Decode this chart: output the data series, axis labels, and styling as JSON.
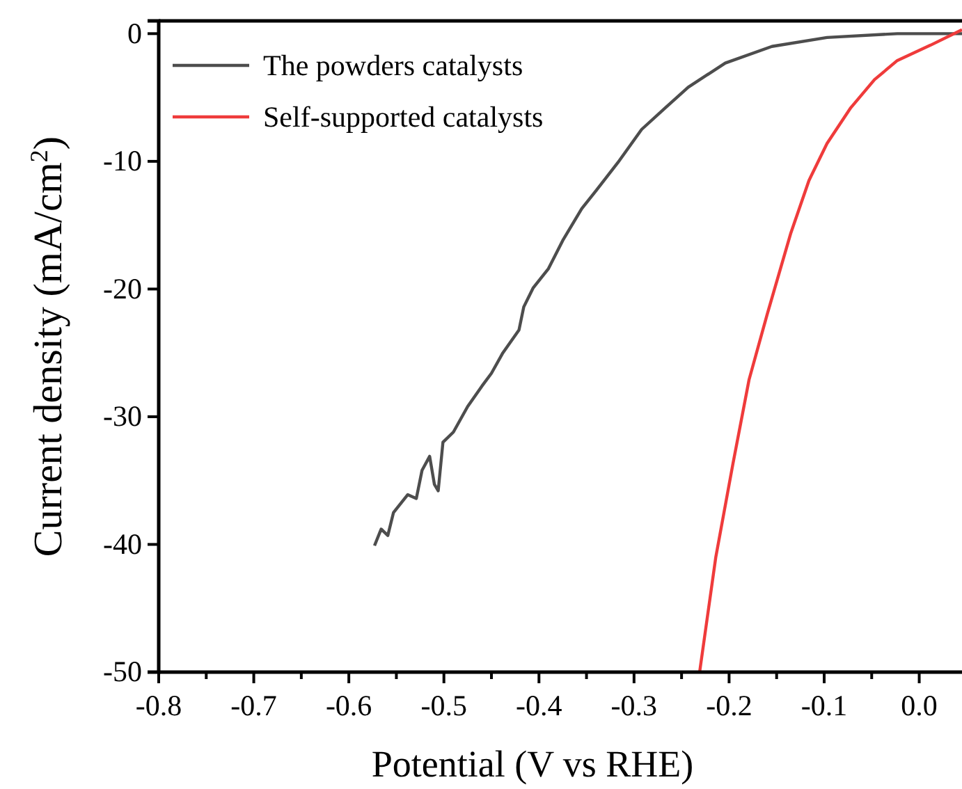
{
  "chart_data": {
    "type": "line",
    "xlabel": "Potential (V vs RHE)",
    "ylabel": "Current density  (mA/cm$^{2}$)",
    "xlim": [
      -0.8,
      0.045
    ],
    "ylim": [
      -50,
      1
    ],
    "xticks": [
      -0.8,
      {
        "value": -0.75,
        "label": null
      },
      -0.7,
      {
        "value": -0.65,
        "label": null
      },
      -0.6,
      {
        "value": -0.55,
        "label": null
      },
      -0.5,
      {
        "value": -0.45,
        "label": null
      },
      -0.4,
      {
        "value": -0.35,
        "label": null
      },
      -0.3,
      {
        "value": -0.25,
        "label": null
      },
      -0.2,
      {
        "value": -0.15,
        "label": null
      },
      -0.1,
      {
        "value": -0.05,
        "label": null
      },
      {
        "value": 0,
        "label": "0.0"
      }
    ],
    "yticks": [
      -50,
      -40,
      -30,
      -20,
      -10,
      0
    ],
    "legend": "top left",
    "grid": false,
    "line_style": "solid",
    "marker": "none",
    "series": [
      {
        "name": "The powders catalysts",
        "color": "#4d4d4d",
        "x": [
          -0.573,
          -0.566,
          -0.559,
          -0.553,
          -0.538,
          -0.529,
          -0.523,
          -0.515,
          -0.51,
          -0.506,
          -0.501,
          -0.49,
          -0.475,
          -0.46,
          -0.45,
          -0.438,
          -0.421,
          -0.416,
          -0.406,
          -0.39,
          -0.375,
          -0.355,
          -0.34,
          -0.317,
          -0.292,
          -0.267,
          -0.243,
          -0.204,
          -0.155,
          -0.097,
          -0.023,
          0.045
        ],
        "values": [
          -40.1,
          -38.8,
          -39.3,
          -37.5,
          -36.1,
          -36.4,
          -34.2,
          -33.1,
          -35.3,
          -35.8,
          -32.0,
          -31.2,
          -29.2,
          -27.6,
          -26.6,
          -25.0,
          -23.2,
          -21.4,
          -19.9,
          -18.4,
          -16.2,
          -13.7,
          -12.3,
          -10.1,
          -7.5,
          -5.8,
          -4.2,
          -2.3,
          -1.0,
          -0.3,
          0,
          0
        ]
      },
      {
        "name": "Self-supported catalysts",
        "color": "#ef3b3b",
        "x": [
          -0.231,
          -0.214,
          -0.196,
          -0.179,
          -0.16,
          -0.135,
          -0.116,
          -0.097,
          -0.072,
          -0.047,
          -0.023,
          0.012,
          0.045
        ],
        "values": [
          -50,
          -41.0,
          -33.7,
          -27.1,
          -22.0,
          -15.6,
          -11.5,
          -8.6,
          -5.8,
          -3.6,
          -2.1,
          -0.9,
          0.3
        ]
      }
    ]
  }
}
